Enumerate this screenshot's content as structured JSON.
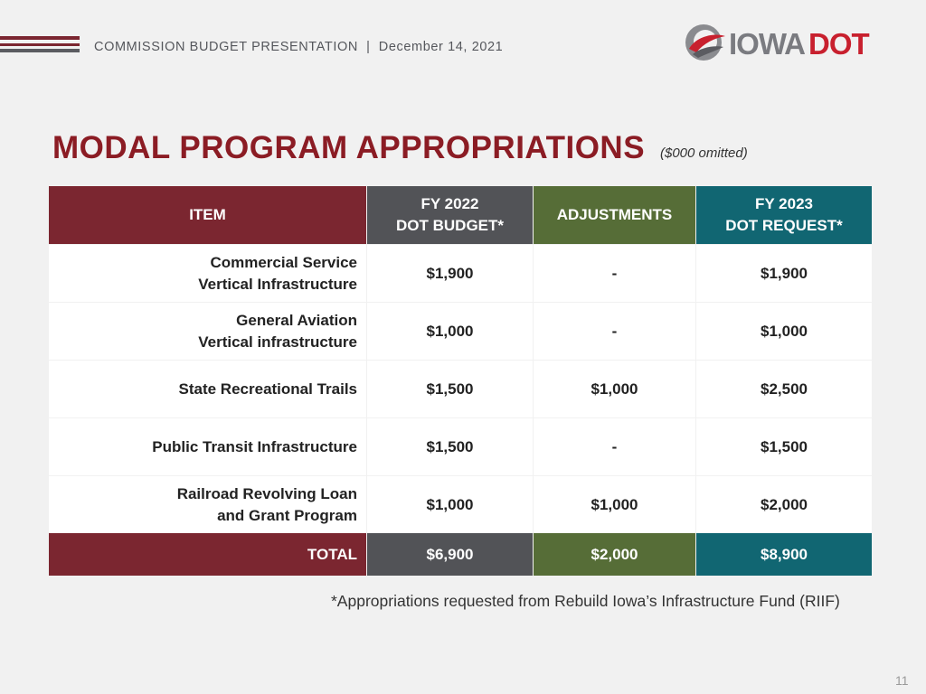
{
  "header": {
    "text": "COMMISSION BUDGET PRESENTATION  |  December 14, 2021",
    "logo_text": "IOWADOT"
  },
  "title": "MODAL PROGRAM APPROPRIATIONS",
  "units_note": "($000 omitted)",
  "table": {
    "headers": {
      "item": "ITEM",
      "fy2022_line1": "FY 2022",
      "fy2022_line2": "DOT BUDGET*",
      "adjustments": "ADJUSTMENTS",
      "fy2023_line1": "FY 2023",
      "fy2023_line2": "DOT REQUEST*"
    },
    "rows": [
      {
        "item_line1": "Commercial Service",
        "item_line2": "Vertical Infrastructure",
        "fy2022": "$1,900",
        "adjustments": "-",
        "fy2023": "$1,900"
      },
      {
        "item_line1": "General Aviation",
        "item_line2": "Vertical infrastructure",
        "fy2022": "$1,000",
        "adjustments": "-",
        "fy2023": "$1,000"
      },
      {
        "item_line1": "State Recreational Trails",
        "item_line2": "",
        "fy2022": "$1,500",
        "adjustments": "$1,000",
        "fy2023": "$2,500"
      },
      {
        "item_line1": "Public Transit Infrastructure",
        "item_line2": "",
        "fy2022": "$1,500",
        "adjustments": "-",
        "fy2023": "$1,500"
      },
      {
        "item_line1": "Railroad Revolving Loan",
        "item_line2": "and Grant Program",
        "fy2022": "$1,000",
        "adjustments": "$1,000",
        "fy2023": "$2,000"
      }
    ],
    "total": {
      "label": "TOTAL",
      "fy2022": "$6,900",
      "adjustments": "$2,000",
      "fy2023": "$8,900"
    }
  },
  "footnote": "*Appropriations requested from Rebuild Iowa’s Infrastructure Fund (RIIF)",
  "page_number": "11",
  "colors": {
    "maroon": "#7b2630",
    "gray": "#525357",
    "green": "#566d37",
    "teal": "#116672",
    "title_red": "#8b1c24",
    "logo_red": "#c8202e"
  }
}
